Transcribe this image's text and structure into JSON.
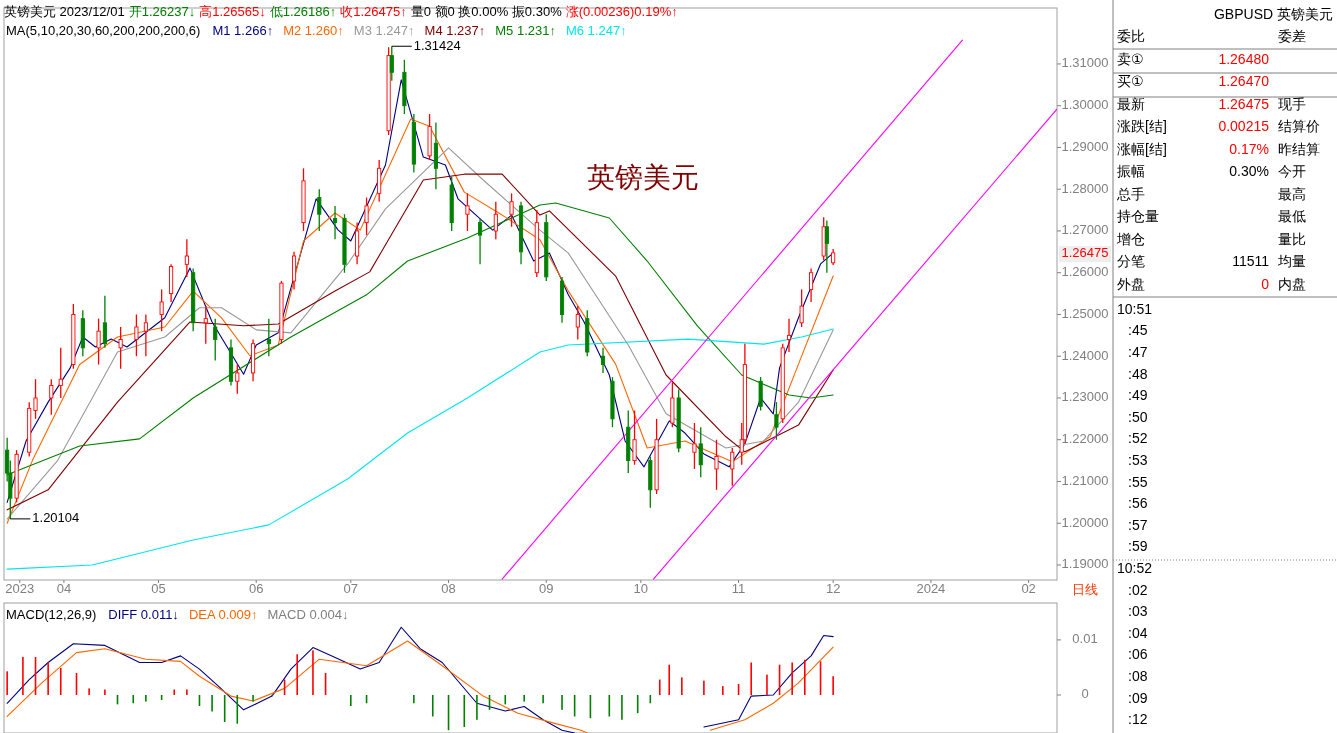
{
  "chart_data": [
    {
      "type": "candlestick",
      "title": "英镑美元",
      "annotations": [
        "英镑美元 2023/12/01",
        "开1.26237↓",
        "高1.26565↓",
        "低1.26186↑",
        "收1.26475↑",
        "量0 额0 换0.00% 振0.30%",
        "涨(0.00236)0.19%↑",
        "日线",
        {
          "text": "1.31424",
          "x": "2023-07-14",
          "y": 1.31424
        },
        {
          "text": "1.20104",
          "x": "2023-03-15",
          "y": 1.20104
        },
        "1.26475"
      ],
      "legend_title": "MA(5,10,20,30,60,200,200,200,6)",
      "legend": "top left",
      "xlim": [
        "2023-03-13",
        "2024-02-10"
      ],
      "ylim": [
        1.1864,
        1.3234
      ],
      "xticks": [
        {
          "value": "2023-03-18",
          "label": "2023"
        },
        {
          "value": "2023-04-01",
          "label": "04"
        },
        {
          "value": "2023-05-01",
          "label": "05"
        },
        {
          "value": "2023-06-01",
          "label": "06"
        },
        {
          "value": "2023-07-01",
          "label": "07"
        },
        {
          "value": "2023-08-01",
          "label": "08"
        },
        {
          "value": "2023-09-01",
          "label": "09"
        },
        {
          "value": "2023-10-01",
          "label": "10"
        },
        {
          "value": "2023-11-01",
          "label": "11"
        },
        {
          "value": "2023-12-01",
          "label": "12"
        },
        {
          "value": "2024-01-01",
          "label": "2024"
        },
        {
          "value": "2024-02-01",
          "label": "02"
        }
      ],
      "yticks": [
        {
          "value": 1.19,
          "label": "1.19000"
        },
        {
          "value": 1.2,
          "label": "1.20000"
        },
        {
          "value": 1.21,
          "label": "1.21000"
        },
        {
          "value": 1.22,
          "label": "1.22000"
        },
        {
          "value": 1.23,
          "label": "1.23000"
        },
        {
          "value": 1.24,
          "label": "1.24000"
        },
        {
          "value": 1.25,
          "label": "1.25000"
        },
        {
          "value": 1.26,
          "label": "1.26000"
        },
        {
          "value": 1.27,
          "label": "1.27000"
        },
        {
          "value": 1.28,
          "label": "1.28000"
        },
        {
          "value": 1.29,
          "label": "1.29000"
        },
        {
          "value": 1.3,
          "label": "1.30000"
        },
        {
          "value": 1.31,
          "label": "1.31000"
        }
      ],
      "x": [
        "2023-03-14",
        "2023-03-15",
        "2023-03-17",
        "2023-03-21",
        "2023-03-23",
        "2023-03-28",
        "2023-03-31",
        "2023-04-04",
        "2023-04-07",
        "2023-04-12",
        "2023-04-14",
        "2023-04-19",
        "2023-04-24",
        "2023-04-27",
        "2023-05-02",
        "2023-05-05",
        "2023-05-10",
        "2023-05-12",
        "2023-05-16",
        "2023-05-19",
        "2023-05-24",
        "2023-05-26",
        "2023-05-31",
        "2023-06-05",
        "2023-06-09",
        "2023-06-13",
        "2023-06-16",
        "2023-06-21",
        "2023-06-26",
        "2023-06-29",
        "2023-07-03",
        "2023-07-06",
        "2023-07-10",
        "2023-07-13",
        "2023-07-14",
        "2023-07-18",
        "2023-07-21",
        "2023-07-26",
        "2023-07-28",
        "2023-08-02",
        "2023-08-07",
        "2023-08-11",
        "2023-08-16",
        "2023-08-21",
        "2023-08-24",
        "2023-08-29",
        "2023-09-01",
        "2023-09-06",
        "2023-09-11",
        "2023-09-14",
        "2023-09-19",
        "2023-09-22",
        "2023-09-27",
        "2023-09-29",
        "2023-10-04",
        "2023-10-06",
        "2023-10-11",
        "2023-10-13",
        "2023-10-18",
        "2023-10-20",
        "2023-10-25",
        "2023-10-30",
        "2023-11-02",
        "2023-11-03",
        "2023-11-08",
        "2023-11-13",
        "2023-11-15",
        "2023-11-17",
        "2023-11-21",
        "2023-11-24",
        "2023-11-28",
        "2023-11-29",
        "2023-12-01"
      ],
      "ohlc": [
        [
          1.2175,
          1.2205,
          1.21,
          1.212
        ],
        [
          1.212,
          1.215,
          1.20104,
          1.206
        ],
        [
          1.206,
          1.2175,
          1.205,
          1.2165
        ],
        [
          1.217,
          1.229,
          1.216,
          1.2275
        ],
        [
          1.227,
          1.2345,
          1.225,
          1.23
        ],
        [
          1.23,
          1.2345,
          1.226,
          1.233
        ],
        [
          1.233,
          1.242,
          1.23,
          1.2345
        ],
        [
          1.238,
          1.2525,
          1.237,
          1.25
        ],
        [
          1.249,
          1.251,
          1.24,
          1.242
        ],
        [
          1.242,
          1.249,
          1.238,
          1.246
        ],
        [
          1.248,
          1.2545,
          1.242,
          1.243
        ],
        [
          1.242,
          1.247,
          1.237,
          1.244
        ],
        [
          1.244,
          1.25,
          1.24,
          1.247
        ],
        [
          1.246,
          1.25,
          1.24,
          1.248
        ],
        [
          1.25,
          1.256,
          1.246,
          1.253
        ],
        [
          1.255,
          1.262,
          1.253,
          1.2615
        ],
        [
          1.262,
          1.268,
          1.259,
          1.264
        ],
        [
          1.26,
          1.261,
          1.246,
          1.248
        ],
        [
          1.248,
          1.252,
          1.243,
          1.249
        ],
        [
          1.247,
          1.249,
          1.239,
          1.244
        ],
        [
          1.242,
          1.244,
          1.233,
          1.234
        ],
        [
          1.234,
          1.238,
          1.231,
          1.236
        ],
        [
          1.236,
          1.244,
          1.234,
          1.243
        ],
        [
          1.244,
          1.249,
          1.24,
          1.243
        ],
        [
          1.244,
          1.258,
          1.243,
          1.2575
        ],
        [
          1.258,
          1.265,
          1.256,
          1.264
        ],
        [
          1.272,
          1.285,
          1.27,
          1.282
        ],
        [
          1.278,
          1.28,
          1.27,
          1.274
        ],
        [
          1.273,
          1.276,
          1.268,
          1.272
        ],
        [
          1.273,
          1.274,
          1.26,
          1.262
        ],
        [
          1.264,
          1.272,
          1.262,
          1.27
        ],
        [
          1.272,
          1.278,
          1.269,
          1.276
        ],
        [
          1.279,
          1.287,
          1.277,
          1.285
        ],
        [
          1.294,
          1.314,
          1.293,
          1.312
        ],
        [
          1.312,
          1.31424,
          1.306,
          1.308
        ],
        [
          1.308,
          1.311,
          1.298,
          1.3
        ],
        [
          1.296,
          1.298,
          1.284,
          1.286
        ],
        [
          1.288,
          1.298,
          1.287,
          1.295
        ],
        [
          1.291,
          1.296,
          1.28,
          1.285
        ],
        [
          1.281,
          1.283,
          1.27,
          1.272
        ],
        [
          1.274,
          1.279,
          1.27,
          1.276
        ],
        [
          1.272,
          1.273,
          1.262,
          1.269
        ],
        [
          1.27,
          1.277,
          1.268,
          1.274
        ],
        [
          1.274,
          1.279,
          1.271,
          1.277
        ],
        [
          1.276,
          1.277,
          1.262,
          1.265
        ],
        [
          1.26,
          1.275,
          1.259,
          1.272
        ],
        [
          1.272,
          1.274,
          1.258,
          1.259
        ],
        [
          1.258,
          1.259,
          1.248,
          1.25
        ],
        [
          1.247,
          1.252,
          1.244,
          1.25
        ],
        [
          1.249,
          1.251,
          1.24,
          1.241
        ],
        [
          1.24,
          1.242,
          1.236,
          1.238
        ],
        [
          1.234,
          1.235,
          1.223,
          1.225
        ],
        [
          1.223,
          1.227,
          1.212,
          1.215
        ],
        [
          1.215,
          1.227,
          1.214,
          1.22
        ],
        [
          1.215,
          1.216,
          1.2037,
          1.208
        ],
        [
          1.208,
          1.225,
          1.207,
          1.22
        ],
        [
          1.224,
          1.2337,
          1.223,
          1.23
        ],
        [
          1.23,
          1.232,
          1.217,
          1.218
        ],
        [
          1.217,
          1.224,
          1.213,
          1.219
        ],
        [
          1.219,
          1.223,
          1.211,
          1.214
        ],
        [
          1.213,
          1.22,
          1.208,
          1.216
        ],
        [
          1.213,
          1.218,
          1.209,
          1.217
        ],
        [
          1.217,
          1.224,
          1.214,
          1.22
        ],
        [
          1.22,
          1.243,
          1.219,
          1.238
        ],
        [
          1.234,
          1.235,
          1.227,
          1.228
        ],
        [
          1.226,
          1.229,
          1.22,
          1.223
        ],
        [
          1.225,
          1.243,
          1.224,
          1.242
        ],
        [
          1.244,
          1.249,
          1.241,
          1.245
        ],
        [
          1.248,
          1.256,
          1.247,
          1.252
        ],
        [
          1.256,
          1.261,
          1.253,
          1.26
        ],
        [
          1.264,
          1.2733,
          1.263,
          1.271
        ],
        [
          1.271,
          1.2725,
          1.26,
          1.267
        ],
        [
          1.26237,
          1.26565,
          1.26186,
          1.26475
        ]
      ],
      "colors": [
        "#008000",
        "#008000",
        "#ff0000",
        "#ff0000",
        "#ff0000",
        "#ff0000",
        "#ff0000",
        "#ff0000",
        "#008000",
        "#ff0000",
        "#008000",
        "#ff0000",
        "#ff0000",
        "#ff0000",
        "#ff0000",
        "#ff0000",
        "#ff0000",
        "#008000",
        "#ff0000",
        "#008000",
        "#008000",
        "#ff0000",
        "#ff0000",
        "#008000",
        "#ff0000",
        "#ff0000",
        "#ff0000",
        "#008000",
        "#008000",
        "#008000",
        "#ff0000",
        "#ff0000",
        "#ff0000",
        "#ff0000",
        "#008000",
        "#008000",
        "#008000",
        "#ff0000",
        "#008000",
        "#008000",
        "#ff0000",
        "#008000",
        "#ff0000",
        "#ff0000",
        "#008000",
        "#ff0000",
        "#008000",
        "#008000",
        "#ff0000",
        "#008000",
        "#008000",
        "#008000",
        "#008000",
        "#ff0000",
        "#008000",
        "#ff0000",
        "#ff0000",
        "#008000",
        "#ff0000",
        "#008000",
        "#ff0000",
        "#ff0000",
        "#ff0000",
        "#ff0000",
        "#008000",
        "#008000",
        "#ff0000",
        "#ff0000",
        "#ff0000",
        "#ff0000",
        "#ff0000",
        "#008000",
        "#ff0000"
      ],
      "series": [
        {
          "type": "line",
          "name": "M1 1.266↑",
          "color": "#000080",
          "x": [
            "2023-03-14",
            "2023-03-20",
            "2023-03-27",
            "2023-04-03",
            "2023-04-07",
            "2023-04-11",
            "2023-04-16",
            "2023-04-21",
            "2023-05-03",
            "2023-05-11",
            "2023-05-18",
            "2023-05-28",
            "2023-06-01",
            "2023-06-08",
            "2023-06-20",
            "2023-06-27",
            "2023-07-01",
            "2023-07-12",
            "2023-07-17",
            "2023-07-24",
            "2023-07-31",
            "2023-08-04",
            "2023-08-15",
            "2023-08-21",
            "2023-08-28",
            "2023-09-02",
            "2023-09-08",
            "2023-09-13",
            "2023-09-21",
            "2023-09-26",
            "2023-10-02",
            "2023-10-10",
            "2023-10-15",
            "2023-10-21",
            "2023-10-29",
            "2023-11-03",
            "2023-11-08",
            "2023-11-12",
            "2023-11-14",
            "2023-11-20",
            "2023-11-27",
            "2023-12-01"
          ],
          "values": [
            1.205,
            1.2197,
            1.229,
            1.2372,
            1.2446,
            1.2422,
            1.2441,
            1.2422,
            1.2492,
            1.2611,
            1.2482,
            1.2357,
            1.2427,
            1.2456,
            1.2777,
            1.2702,
            1.2676,
            1.2858,
            1.3062,
            1.2877,
            1.2858,
            1.2777,
            1.2702,
            1.2738,
            1.2628,
            1.2647,
            1.2547,
            1.2482,
            1.2355,
            1.2197,
            1.2135,
            1.2245,
            1.2216,
            1.2166,
            1.2135,
            1.219,
            1.23,
            1.2262,
            1.2372,
            1.2492,
            1.2621,
            1.2647
          ]
        },
        {
          "type": "line",
          "name": "M2 1.260↑",
          "color": "#ff6600",
          "x": [
            "2023-03-14",
            "2023-03-22",
            "2023-04-06",
            "2023-04-18",
            "2023-05-03",
            "2023-05-12",
            "2023-05-21",
            "2023-05-30",
            "2023-06-08",
            "2023-06-16",
            "2023-06-26",
            "2023-07-04",
            "2023-07-20",
            "2023-07-26",
            "2023-08-06",
            "2023-08-18",
            "2023-08-30",
            "2023-09-08",
            "2023-09-23",
            "2023-10-03",
            "2023-10-15",
            "2023-10-30",
            "2023-11-11",
            "2023-11-20",
            "2023-12-01"
          ],
          "values": [
            1.2,
            1.215,
            1.238,
            1.2446,
            1.247,
            1.2556,
            1.2492,
            1.2401,
            1.2427,
            1.2676,
            1.2743,
            1.2702,
            1.2968,
            1.2951,
            1.2793,
            1.2738,
            1.2679,
            1.2556,
            1.2381,
            1.218,
            1.2197,
            1.2147,
            1.2207,
            1.2381,
            1.2592
          ]
        },
        {
          "type": "line",
          "name": "M3 1.247↑",
          "color": "#999999",
          "x": [
            "2023-03-14",
            "2023-03-30",
            "2023-04-10",
            "2023-04-18",
            "2023-05-03",
            "2023-05-14",
            "2023-05-21",
            "2023-06-01",
            "2023-06-12",
            "2023-06-30",
            "2023-07-12",
            "2023-08-01",
            "2023-08-12",
            "2023-08-30",
            "2023-09-08",
            "2023-09-27",
            "2023-10-09",
            "2023-10-28",
            "2023-11-09",
            "2023-11-20",
            "2023-12-01"
          ],
          "values": [
            1.201,
            1.215,
            1.23,
            1.241,
            1.2446,
            1.2516,
            1.2516,
            1.2463,
            1.2456,
            1.2621,
            1.2753,
            1.2899,
            1.2822,
            1.2702,
            1.2647,
            1.2427,
            1.2262,
            1.218,
            1.2197,
            1.229,
            1.2463
          ]
        },
        {
          "type": "line",
          "name": "M4 1.237↑",
          "color": "#800000",
          "x": [
            "2023-03-14",
            "2023-03-27",
            "2023-04-18",
            "2023-05-11",
            "2023-05-28",
            "2023-06-08",
            "2023-06-26",
            "2023-07-07",
            "2023-07-24",
            "2023-08-06",
            "2023-08-18",
            "2023-08-30",
            "2023-09-02",
            "2023-09-23",
            "2023-10-09",
            "2023-10-28",
            "2023-11-03",
            "2023-11-20",
            "2023-12-01"
          ],
          "values": [
            1.2032,
            1.208,
            1.229,
            1.2482,
            1.2473,
            1.2477,
            1.2556,
            1.2602,
            1.2822,
            1.2836,
            1.2836,
            1.2738,
            1.2748,
            1.2592,
            1.2355,
            1.2207,
            1.2171,
            1.2235,
            1.2367
          ]
        },
        {
          "type": "line",
          "name": "M5 1.231↑",
          "color": "#008000",
          "x": [
            "2023-03-14",
            "2023-04-06",
            "2023-04-25",
            "2023-05-12",
            "2023-06-12",
            "2023-07-06",
            "2023-07-19",
            "2023-08-07",
            "2023-08-30",
            "2023-09-04",
            "2023-09-21",
            "2023-10-03",
            "2023-10-19",
            "2023-11-02",
            "2023-11-17",
            "2023-11-24",
            "2023-12-01"
          ],
          "values": [
            1.2116,
            1.2185,
            1.2202,
            1.23,
            1.2446,
            1.2547,
            1.2628,
            1.2683,
            1.2762,
            1.2767,
            1.2731,
            1.2628,
            1.2472,
            1.2355,
            1.2307,
            1.23,
            1.2307
          ]
        },
        {
          "type": "line",
          "name": "M6 1.247↑",
          "color": "#00e5ee",
          "x": [
            "2023-03-14",
            "2023-04-10",
            "2023-05-12",
            "2023-06-05",
            "2023-06-30",
            "2023-07-19",
            "2023-08-07",
            "2023-08-30",
            "2023-09-08",
            "2023-10-16",
            "2023-11-09",
            "2023-11-21",
            "2023-12-01"
          ],
          "values": [
            1.189,
            1.19,
            1.196,
            1.1996,
            1.2106,
            1.2216,
            1.23,
            1.241,
            1.2427,
            1.2441,
            1.2429,
            1.2446,
            1.2465
          ]
        },
        {
          "type": "line",
          "color": "#ff00ff",
          "x": [
            "2023-08-18",
            "2024-01-11"
          ],
          "values": [
            1.1866,
            1.3157
          ]
        },
        {
          "type": "line",
          "color": "#ff00ff",
          "x": [
            "2023-10-05",
            "2024-02-10"
          ],
          "values": [
            1.1866,
            1.2992
          ]
        }
      ]
    },
    {
      "type": "bar",
      "legend_title": "MACD(12,26,9)",
      "legend": "top left",
      "tick_labels": "y",
      "xlim": [
        "2023-03-13",
        "2024-02-10"
      ],
      "ylim": [
        -0.0069,
        0.0167
      ],
      "yticks": [
        {
          "value": 0.01,
          "label": "0.01"
        },
        {
          "value": 0,
          "label": "0"
        }
      ],
      "series": [
        {
          "type": "line",
          "name": "DIFF 0.011↓",
          "color": "#000080",
          "x": [
            "2023-03-14",
            "2023-03-21",
            "2023-03-27",
            "2023-04-04",
            "2023-04-14",
            "2023-04-25",
            "2023-05-02",
            "2023-05-08",
            "2023-05-14",
            "2023-05-20",
            "2023-05-28",
            "2023-06-06",
            "2023-06-12",
            "2023-06-19",
            "2023-06-25",
            "2023-07-04",
            "2023-07-10",
            "2023-07-17",
            "2023-07-23",
            "2023-07-30",
            "2023-08-10",
            "2023-08-19",
            "2023-08-25",
            "2023-08-31",
            "2023-09-06",
            "2023-09-10",
            "2023-10-21",
            "2023-11-01",
            "2023-11-05",
            "2023-11-12",
            "2023-11-18",
            "2023-11-24",
            "2023-11-28",
            "2023-12-01"
          ],
          "values": [
            -0.0015,
            0.0028,
            0.0059,
            0.0093,
            0.009,
            0.0059,
            0.0059,
            0.0071,
            0.0047,
            0.0016,
            -0.0027,
            -0.0002,
            0.0047,
            0.0086,
            0.0071,
            0.0047,
            0.0059,
            0.0123,
            0.0084,
            0.0059,
            -0.0015,
            -0.0029,
            -0.0021,
            -0.0045,
            -0.0064,
            null,
            -0.0058,
            -0.0045,
            -0.0002,
            0,
            0.004,
            0.0071,
            0.0108,
            0.0106
          ]
        },
        {
          "type": "line",
          "name": "DEA 0.009↑",
          "color": "#ff6600",
          "x": [
            "2023-03-14",
            "2023-03-25",
            "2023-04-05",
            "2023-04-14",
            "2023-04-27",
            "2023-05-08",
            "2023-05-14",
            "2023-05-24",
            "2023-05-31",
            "2023-06-10",
            "2023-06-21",
            "2023-07-06",
            "2023-07-19",
            "2023-07-30",
            "2023-08-12",
            "2023-08-23",
            "2023-09-04",
            "2023-09-12",
            "2023-09-14",
            "2023-10-23",
            "2023-11-03",
            "2023-11-12",
            "2023-11-20",
            "2023-12-01"
          ],
          "values": [
            -0.0039,
            0.0022,
            0.0077,
            0.0084,
            0.0065,
            0.0061,
            0.0034,
            -0.0002,
            -0.0011,
            0.0012,
            0.0065,
            0.0053,
            0.0098,
            0.0053,
            -0.0002,
            -0.0033,
            -0.0052,
            -0.0064,
            null,
            -0.0064,
            -0.0045,
            -0.0015,
            0.0022,
            0.0087
          ]
        },
        {
          "type": "bar",
          "name": "MACD 0.004↓",
          "color": "#808080",
          "x": [
            "2023-03-14",
            "2023-03-19",
            "2023-03-23",
            "2023-03-27",
            "2023-03-31",
            "2023-04-05",
            "2023-04-09",
            "2023-04-14",
            "2023-04-18",
            "2023-04-23",
            "2023-04-27",
            "2023-05-02",
            "2023-05-06",
            "2023-05-10",
            "2023-05-14",
            "2023-05-18",
            "2023-05-22",
            "2023-05-26",
            "2023-05-31",
            "2023-06-06",
            "2023-06-10",
            "2023-06-14",
            "2023-06-19",
            "2023-06-23",
            "2023-07-01",
            "2023-07-06",
            "2023-07-21",
            "2023-07-27",
            "2023-08-01",
            "2023-08-06",
            "2023-08-10",
            "2023-08-14",
            "2023-08-19",
            "2023-08-25",
            "2023-08-31",
            "2023-09-06",
            "2023-09-10",
            "2023-09-15",
            "2023-09-21",
            "2023-09-25",
            "2023-09-30",
            "2023-10-04",
            "2023-10-07",
            "2023-10-10",
            "2023-10-14",
            "2023-10-21",
            "2023-10-27",
            "2023-11-01",
            "2023-11-05",
            "2023-11-10",
            "2023-11-14",
            "2023-11-18",
            "2023-11-22",
            "2023-11-27",
            "2023-12-01"
          ],
          "values": [
            0.0043,
            0.0069,
            0.0069,
            0.0059,
            0.0049,
            0.004,
            0.0012,
            0.001,
            -0.0017,
            -0.0015,
            -0.0012,
            -0.0009,
            0.001,
            0.001,
            -0.002,
            -0.003,
            -0.0049,
            -0.0052,
            -0.0012,
            -0.0002,
            0.0028,
            0.0074,
            0.0081,
            0.004,
            -0.002,
            -0.0015,
            -0.0015,
            -0.0039,
            -0.0064,
            -0.0058,
            -0.0045,
            -0.0027,
            -0.0017,
            -0.0012,
            -0.0015,
            -0.0027,
            -0.0039,
            -0.0042,
            -0.0039,
            -0.0045,
            -0.0033,
            -0.0015,
            0.0028,
            0.0055,
            0.0032,
            0.0026,
            0.0016,
            0.002,
            0.0059,
            0.0037,
            0.0055,
            0.0059,
            0.0064,
            0.0061,
            0.0034
          ],
          "colors": [
            "#ff0000",
            "#ff0000",
            "#ff0000",
            "#ff0000",
            "#ff0000",
            "#ff0000",
            "#ff0000",
            "#ff0000",
            "#008000",
            "#008000",
            "#008000",
            "#008000",
            "#ff0000",
            "#ff0000",
            "#008000",
            "#008000",
            "#008000",
            "#008000",
            "#008000",
            "#008000",
            "#ff0000",
            "#ff0000",
            "#ff0000",
            "#ff0000",
            "#008000",
            "#008000",
            "#008000",
            "#008000",
            "#008000",
            "#008000",
            "#008000",
            "#008000",
            "#008000",
            "#008000",
            "#008000",
            "#008000",
            "#008000",
            "#008000",
            "#008000",
            "#008000",
            "#008000",
            "#008000",
            "#ff0000",
            "#ff0000",
            "#ff0000",
            "#ff0000",
            "#ff0000",
            "#ff0000",
            "#ff0000",
            "#ff0000",
            "#ff0000",
            "#ff0000",
            "#ff0000",
            "#ff0000",
            "#ff0000"
          ]
        }
      ]
    },
    {
      "type": "other",
      "title": "GBPUSD 英镑美元",
      "annotations": [
        "委比",
        "委差",
        "卖①",
        "1.26480",
        "买①",
        "1.26470",
        "最新",
        "1.26475",
        "现手",
        "涨跌[结]",
        "0.00215",
        "结算价",
        "涨幅[结]",
        "0.17%",
        "昨结算",
        "振幅",
        "0.30%",
        "今开",
        "总手",
        "最高",
        "持仓量",
        "最低",
        "增仓",
        "量比",
        "分笔",
        "11511",
        "均量",
        "外盘",
        "0",
        "内盘",
        "10:51",
        ":45",
        ":47",
        ":48",
        ":49",
        ":50",
        ":52",
        ":53",
        ":55",
        ":56",
        ":57",
        ":59",
        "10:52",
        ":02",
        ":03",
        ":04",
        ":06",
        ":08",
        ":09",
        ":12"
      ]
    }
  ]
}
